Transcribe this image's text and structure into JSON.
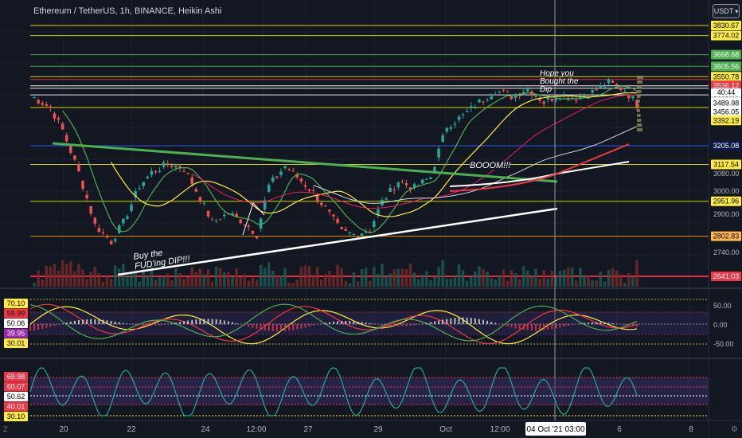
{
  "header": {
    "title": "Ethereum / TetherUS, 1h, BINANCE, Heikin Ashi",
    "currency": "USDT",
    "currency_icon": "chevron-down-icon"
  },
  "annotations": {
    "buy_dip": "Buy the FUD'ing DIP!!!",
    "boom": "BOOOM!!!",
    "hope": "Hope you Bought the Dip"
  },
  "chart_data": [
    {
      "type": "candlestick",
      "name": "price",
      "y_scale": "log",
      "price_levels": [
        {
          "value": 3830.67,
          "color": "#e6e600",
          "label_bg": "#ffeb3b",
          "label_fg": "#000"
        },
        {
          "value": 3774.02,
          "color": "#e6e600",
          "label_bg": "#ffeb3b",
          "label_fg": "#000"
        },
        {
          "value": 3668.68,
          "color": "#4caf50",
          "label_bg": "#4caf50",
          "label_fg": "#fff"
        },
        {
          "value": 3605.56,
          "color": "#4caf50",
          "label_bg": "#4caf50",
          "label_fg": "#fff"
        },
        {
          "value": 3550.78,
          "color": "#e6e600",
          "label_bg": "#ffeb3b",
          "label_fg": "#000"
        },
        {
          "value": 3536.12,
          "color": "#f23645",
          "label_bg": "#f23645",
          "label_fg": "#fff"
        },
        {
          "value": 3503.09,
          "color": "#ffffff",
          "label_bg": "#e0e0e0",
          "label_fg": "#000"
        },
        {
          "value": 3489.98,
          "color": "#ffffff",
          "label_bg": "#ffffff",
          "label_fg": "#000"
        },
        {
          "value": 3456.05,
          "color": "#ffffff",
          "label_bg": "#ffffff",
          "label_fg": "#000"
        },
        {
          "value": 3392.19,
          "color": "#e6e600",
          "label_bg": "#ffeb3b",
          "label_fg": "#000"
        },
        {
          "value": 3205.08,
          "color": "#2962ff",
          "label_bg": "#0b1a4a",
          "label_fg": "#fff"
        },
        {
          "value": 3117.54,
          "color": "#e6e600",
          "label_bg": "#ffeb3b",
          "label_fg": "#000"
        },
        {
          "value": 2951.96,
          "color": "#e6e600",
          "label_bg": "#ffeb3b",
          "label_fg": "#000"
        },
        {
          "value": 2802.83,
          "color": "#ff9800",
          "label_bg": "#ffb74d",
          "label_fg": "#000"
        },
        {
          "value": 2641.03,
          "color": "#f23645",
          "label_bg": "#f23645",
          "label_fg": "#fff"
        }
      ],
      "countdown": "40:44",
      "y_ticks": [
        3080.0,
        3000.0,
        2900.0,
        2740.0
      ],
      "x_ticks": [
        "20",
        "22",
        "24",
        "12:00",
        "27",
        "29",
        "Oct",
        "12:00",
        "04 Oct '21  03:00",
        "6",
        "8"
      ],
      "crosshair_time": "04 Oct '21  03:00",
      "key_prices": [
        {
          "t": 0,
          "p": 3455
        },
        {
          "t": 5,
          "p": 3390
        },
        {
          "t": 8,
          "p": 3280
        },
        {
          "t": 12,
          "p": 3080
        },
        {
          "t": 16,
          "p": 2850
        },
        {
          "t": 20,
          "p": 2780
        },
        {
          "t": 23,
          "p": 2860
        },
        {
          "t": 27,
          "p": 3020
        },
        {
          "t": 30,
          "p": 3080
        },
        {
          "t": 34,
          "p": 3120
        },
        {
          "t": 38,
          "p": 3100
        },
        {
          "t": 41,
          "p": 3000
        },
        {
          "t": 45,
          "p": 2860
        },
        {
          "t": 49,
          "p": 2900
        },
        {
          "t": 53,
          "p": 2860
        },
        {
          "t": 56,
          "p": 2810
        },
        {
          "t": 59,
          "p": 3020
        },
        {
          "t": 63,
          "p": 3110
        },
        {
          "t": 66,
          "p": 3060
        },
        {
          "t": 70,
          "p": 2990
        },
        {
          "t": 73,
          "p": 2920
        },
        {
          "t": 77,
          "p": 2820
        },
        {
          "t": 80,
          "p": 2810
        },
        {
          "t": 84,
          "p": 2830
        },
        {
          "t": 87,
          "p": 2950
        },
        {
          "t": 91,
          "p": 3040
        },
        {
          "t": 95,
          "p": 3010
        },
        {
          "t": 99,
          "p": 3060
        },
        {
          "t": 103,
          "p": 3300
        },
        {
          "t": 107,
          "p": 3350
        },
        {
          "t": 111,
          "p": 3420
        },
        {
          "t": 115,
          "p": 3480
        },
        {
          "t": 119,
          "p": 3450
        },
        {
          "t": 123,
          "p": 3490
        },
        {
          "t": 127,
          "p": 3420
        },
        {
          "t": 131,
          "p": 3460
        },
        {
          "t": 135,
          "p": 3440
        },
        {
          "t": 139,
          "p": 3470
        },
        {
          "t": 143,
          "p": 3520
        },
        {
          "t": 147,
          "p": 3480
        },
        {
          "t": 150,
          "p": 3410
        }
      ]
    },
    {
      "type": "line",
      "name": "macd",
      "levels": [
        70.1,
        59.99,
        50.06,
        39.95,
        30.01
      ],
      "y_ticks": [
        "50.00",
        "0.00",
        "-50.00"
      ]
    },
    {
      "type": "line",
      "name": "stoch",
      "levels": [
        69.98,
        60.07,
        50.62,
        40.01,
        30.1
      ]
    }
  ]
}
